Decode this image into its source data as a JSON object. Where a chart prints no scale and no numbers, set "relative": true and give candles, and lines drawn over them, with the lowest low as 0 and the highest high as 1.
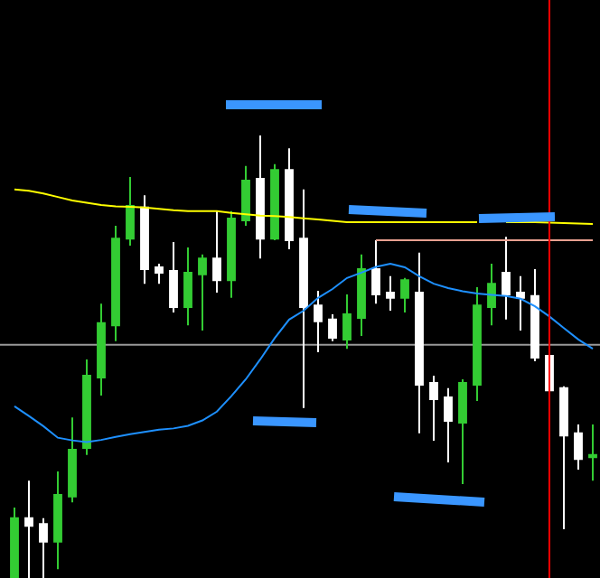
{
  "chart_data": {
    "type": "candlestick",
    "relative": true,
    "categories": [
      null,
      null,
      null,
      null,
      null,
      null,
      null,
      null,
      null,
      null,
      null,
      null,
      null,
      null,
      null,
      null,
      null,
      null,
      null,
      null,
      null,
      null,
      null,
      null,
      null,
      null,
      null,
      null,
      null,
      null,
      null,
      null,
      null,
      null,
      null,
      null,
      null,
      null,
      null,
      null,
      null
    ],
    "ohlc": [
      [
        0,
        0.159,
        0,
        0.135
      ],
      [
        0.135,
        0.22,
        0,
        0.118
      ],
      [
        0.122,
        0.135,
        0,
        0.082
      ],
      [
        0.082,
        0.241,
        0.02,
        0.188
      ],
      [
        0.184,
        0.363,
        0.171,
        0.29
      ],
      [
        0.294,
        0.494,
        0.278,
        0.457
      ],
      [
        0.453,
        0.62,
        0.412,
        0.576
      ],
      [
        0.571,
        0.796,
        0.535,
        0.767
      ],
      [
        0.767,
        0.906,
        0.751,
        0.841
      ],
      [
        0.837,
        0.865,
        0.665,
        0.698
      ],
      [
        0.702,
        0.71,
        0.665,
        0.69
      ],
      [
        0.694,
        0.759,
        0.6,
        0.612
      ],
      [
        0.612,
        0.747,
        0.571,
        0.69
      ],
      [
        0.686,
        0.731,
        0.559,
        0.722
      ],
      [
        0.722,
        0.829,
        0.645,
        0.673
      ],
      [
        0.673,
        0.829,
        0.633,
        0.812
      ],
      [
        0.808,
        0.931,
        0.796,
        0.898
      ],
      [
        0.902,
        1,
        0.722,
        0.767
      ],
      [
        0.767,
        0.935,
        0.763,
        0.922
      ],
      [
        0.922,
        0.971,
        0.743,
        0.763
      ],
      [
        0.767,
        0.878,
        0.384,
        0.612
      ],
      [
        0.616,
        0.649,
        0.51,
        0.58
      ],
      [
        0.584,
        0.596,
        0.535,
        0.543
      ],
      [
        0.539,
        0.641,
        0.518,
        0.596
      ],
      [
        0.588,
        0.731,
        0.547,
        0.698
      ],
      [
        0.698,
        0.763,
        0.62,
        0.641
      ],
      [
        0.645,
        0.682,
        0.604,
        0.633
      ],
      [
        0.633,
        0.678,
        0.6,
        0.673
      ],
      [
        0.645,
        0.735,
        0.327,
        0.437
      ],
      [
        0.441,
        0.457,
        0.31,
        0.404
      ],
      [
        0.408,
        0.429,
        0.261,
        0.355
      ],
      [
        0.351,
        0.449,
        0.212,
        0.441
      ],
      [
        0.437,
        0.657,
        0.4,
        0.616
      ],
      [
        0.612,
        0.71,
        0.571,
        0.665
      ],
      [
        0.69,
        0.771,
        0.584,
        0.641
      ],
      [
        0.645,
        0.682,
        0.559,
        0.633
      ],
      [
        0.637,
        0.698,
        0.49,
        0.498
      ],
      [
        0.502,
        0.527,
        0.416,
        0.424
      ],
      [
        0.429,
        0.433,
        0.11,
        0.322
      ],
      [
        0.327,
        0.347,
        0.245,
        0.269
      ],
      [
        0.273,
        0.347,
        0.22,
        0.278
      ]
    ],
    "colors": [
      "#33cc33",
      "#ffffff",
      "#ffffff",
      "#33cc33",
      "#33cc33",
      "#33cc33",
      "#33cc33",
      "#33cc33",
      "#33cc33",
      "#ffffff",
      "#ffffff",
      "#ffffff",
      "#33cc33",
      "#33cc33",
      "#ffffff",
      "#33cc33",
      "#33cc33",
      "#ffffff",
      "#33cc33",
      "#ffffff",
      "#ffffff",
      "#ffffff",
      "#ffffff",
      "#33cc33",
      "#33cc33",
      "#ffffff",
      "#ffffff",
      "#33cc33",
      "#ffffff",
      "#ffffff",
      "#ffffff",
      "#33cc33",
      "#33cc33",
      "#33cc33",
      "#ffffff",
      "#ffffff",
      "#ffffff",
      "#ffffff",
      "#ffffff",
      "#ffffff",
      "#33cc33"
    ],
    "series": [
      {
        "type": "line",
        "color": "#ffff00",
        "values": [
          0.878,
          0.875,
          0.869,
          0.861,
          0.853,
          0.848,
          0.843,
          0.84,
          0.839,
          0.837,
          0.834,
          0.831,
          0.829,
          0.829,
          0.829,
          0.825,
          0.822,
          0.819,
          0.818,
          0.816,
          0.813,
          0.81,
          0.807,
          0.804,
          0.804,
          0.804,
          0.804,
          0.804,
          0.804,
          0.804,
          0.804,
          0.804,
          0.804,
          null,
          0.804,
          0.804,
          0.804,
          0.803,
          0.802,
          0.801,
          0.8
        ]
      },
      {
        "type": "line",
        "color": "#1e90ff",
        "values": [
          0.388,
          0.366,
          0.343,
          0.317,
          0.311,
          0.307,
          0.312,
          0.319,
          0.325,
          0.33,
          0.335,
          0.338,
          0.344,
          0.356,
          0.376,
          0.411,
          0.449,
          0.494,
          0.542,
          0.584,
          0.604,
          0.633,
          0.653,
          0.678,
          0.69,
          0.703,
          0.71,
          0.702,
          0.682,
          0.665,
          0.655,
          0.648,
          0.643,
          0.64,
          0.637,
          0.631,
          0.614,
          0.591,
          0.565,
          0.539,
          0.518
        ]
      },
      {
        "type": "line",
        "color": "#e8a090",
        "values": [
          null,
          null,
          null,
          null,
          null,
          null,
          null,
          null,
          null,
          null,
          null,
          null,
          null,
          null,
          null,
          null,
          null,
          null,
          null,
          null,
          null,
          null,
          null,
          null,
          null,
          0.763,
          0.763,
          0.763,
          0.763,
          0.763,
          0.763,
          0.763,
          0.763,
          0.763,
          0.763,
          0.763,
          0.763,
          0.763,
          0.763,
          0.763,
          0.763
        ]
      }
    ],
    "ref_lines": [
      {
        "axis": "y",
        "value": 0.527,
        "color": "#999999"
      }
    ],
    "grid": false,
    "tick_labels": false
  }
}
